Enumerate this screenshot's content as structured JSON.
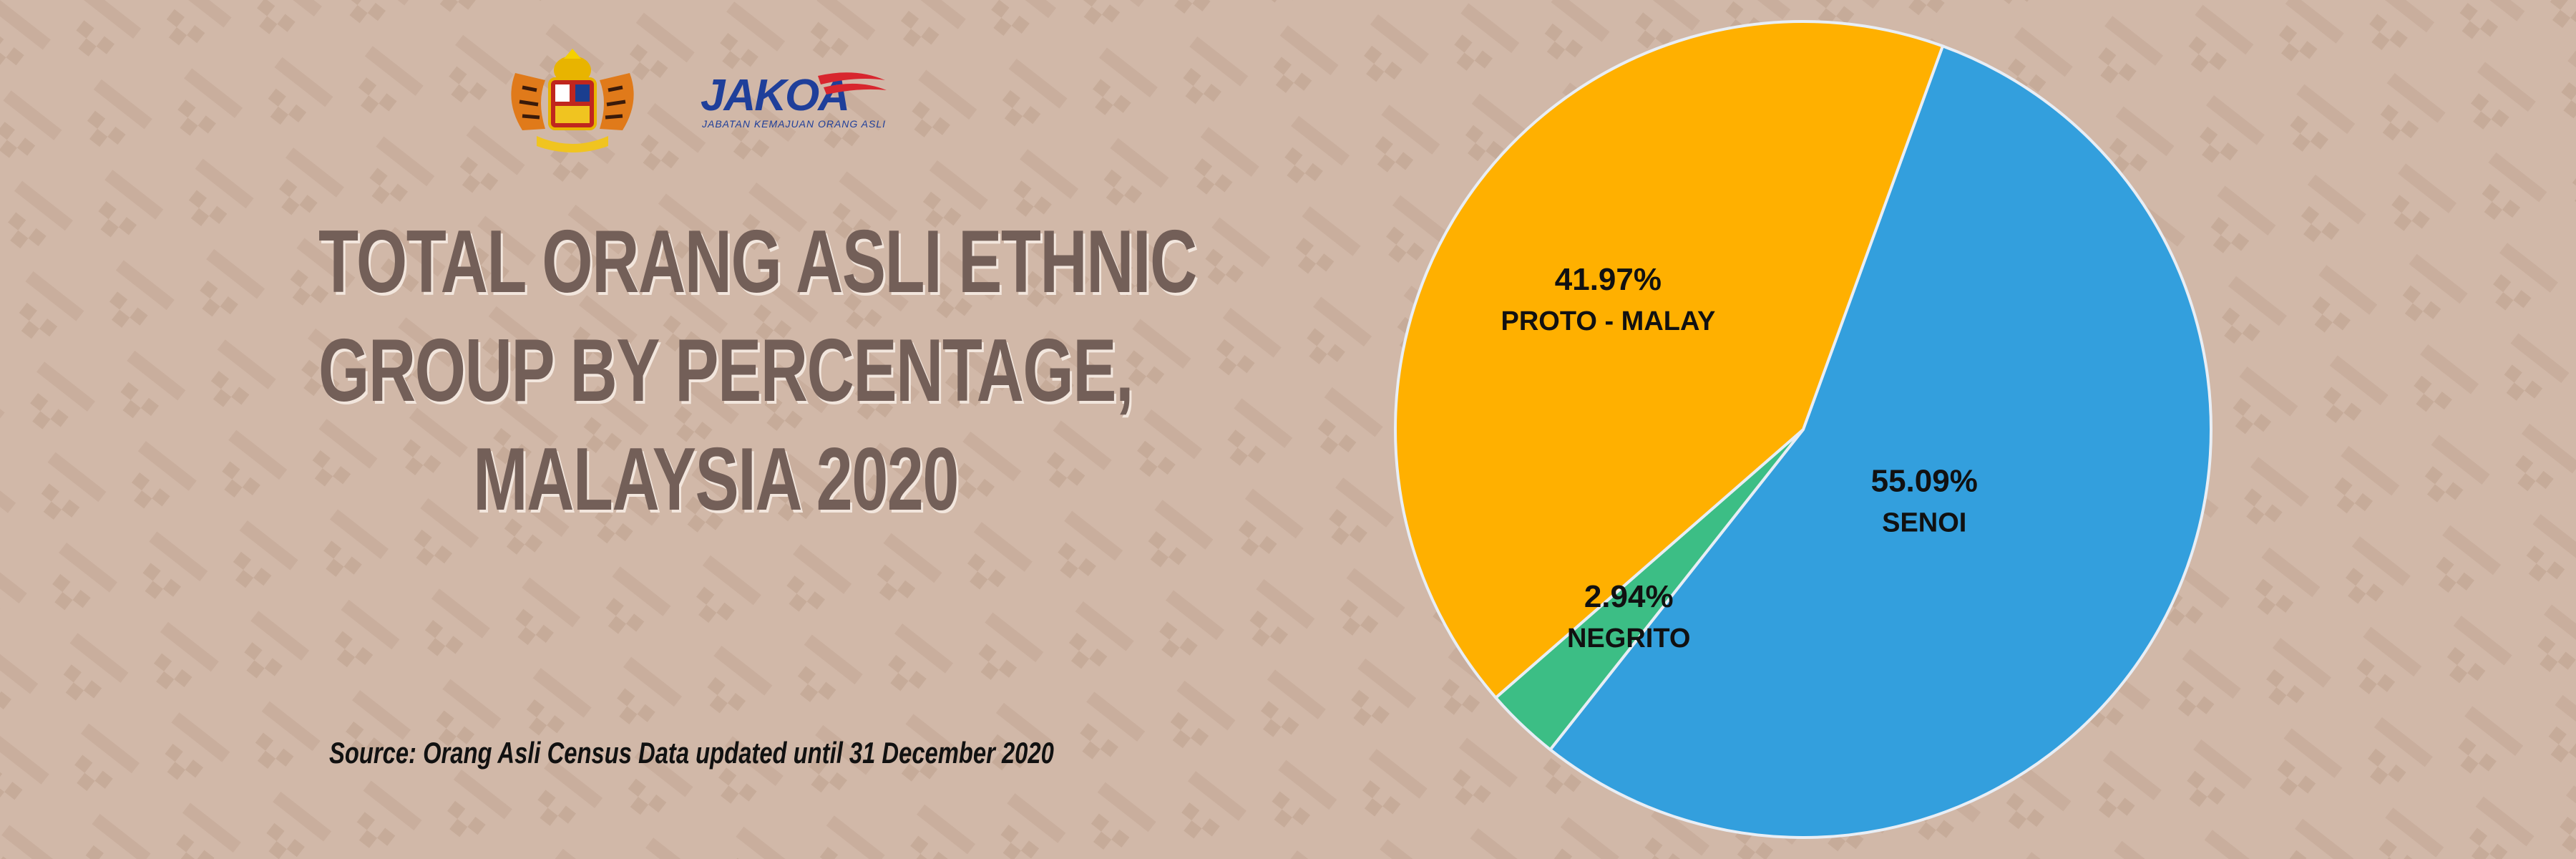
{
  "title": {
    "line1": "TOTAL ORANG ASLI ETHNIC",
    "line2": "GROUP BY PERCENTAGE,",
    "line3": "MALAYSIA 2020"
  },
  "source": "Source: Orang Asli Census Data updated until 31 December 2020",
  "logos": {
    "coat_of_arms": "malaysia-coat-of-arms",
    "jakoa": {
      "name": "JAKOA",
      "subtitle": "JABATAN KEMAJUAN ORANG ASLI"
    }
  },
  "colors": {
    "background": "#d1b8a8",
    "title_text": "#735f58",
    "senoi": "#339fdd",
    "proto_malay": "#ffb000",
    "negrito": "#3cbe85"
  },
  "chart_data": {
    "type": "pie",
    "title": "",
    "slices": [
      {
        "label": "SENOI",
        "value": 55.09,
        "value_label": "55.09%",
        "color": "#339fdd"
      },
      {
        "label": "NEGRITO",
        "value": 2.94,
        "value_label": "2.94%",
        "color": "#3cbe85"
      },
      {
        "label": "PROTO - MALAY",
        "value": 41.97,
        "value_label": "41.97%",
        "color": "#ffb000"
      }
    ],
    "start_angle_deg": 20,
    "direction": "clockwise",
    "legend": "none"
  }
}
